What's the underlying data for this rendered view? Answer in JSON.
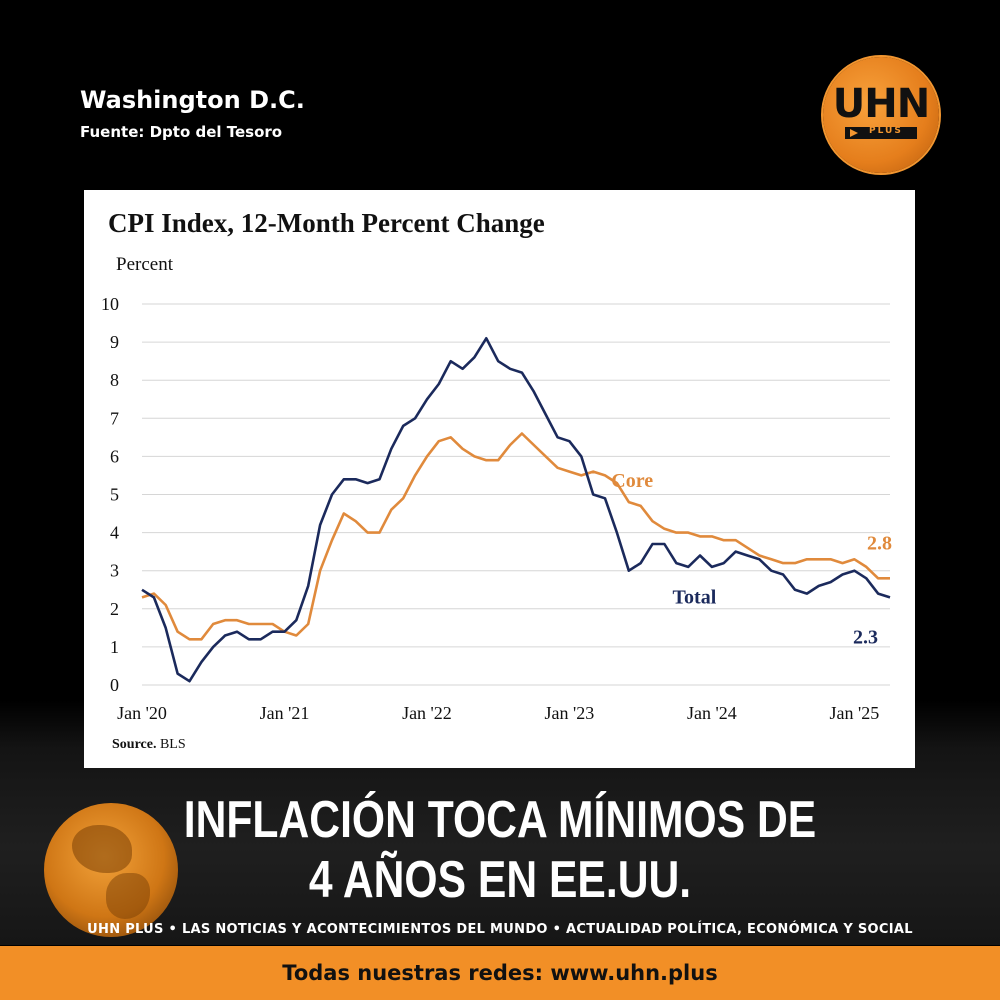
{
  "header": {
    "location": "Washington D.C.",
    "source": "Fuente: Dpto del Tesoro"
  },
  "logo": {
    "main": "UHN",
    "sub": "PLUS",
    "color": "#f29630"
  },
  "headline": {
    "line1": "INFLACIÓN TOCA MÍNIMOS DE",
    "line2": "4 AÑOS EN EE.UU."
  },
  "ticker": "UHN PLUS • LAS NOTICIAS Y ACONTECIMIENTOS DEL MUNDO • ACTUALIDAD POLÍTICA, ECONÓMICA Y SOCIAL",
  "footer": {
    "text": "Todas nuestras redes: www.uhn.plus",
    "color": "#f28f26"
  },
  "chart_data": {
    "type": "line",
    "title": "CPI Index, 12-Month Percent Change",
    "ylabel": "Percent",
    "xlabel": "",
    "ylim": [
      0,
      10
    ],
    "yticks": [
      "0",
      "1",
      "2",
      "3",
      "4",
      "5",
      "6",
      "7",
      "8",
      "9",
      "10"
    ],
    "xticks": [
      "Jan '20",
      "Jan '21",
      "Jan '22",
      "Jan '23",
      "Jan '24",
      "Jan '25"
    ],
    "x_start": "Jan 2020",
    "x_end": "Apr 2025",
    "grid": true,
    "source_label": "Source.",
    "source_value": "BLS",
    "series": [
      {
        "name": "Total",
        "color": "#1b2a5c",
        "end_label": "2.3",
        "values": [
          2.5,
          2.3,
          1.5,
          0.3,
          0.1,
          0.6,
          1.0,
          1.3,
          1.4,
          1.2,
          1.2,
          1.4,
          1.4,
          1.7,
          2.6,
          4.2,
          5.0,
          5.4,
          5.4,
          5.3,
          5.4,
          6.2,
          6.8,
          7.0,
          7.5,
          7.9,
          8.5,
          8.3,
          8.6,
          9.1,
          8.5,
          8.3,
          8.2,
          7.7,
          7.1,
          6.5,
          6.4,
          6.0,
          5.0,
          4.9,
          4.0,
          3.0,
          3.2,
          3.7,
          3.7,
          3.2,
          3.1,
          3.4,
          3.1,
          3.2,
          3.5,
          3.4,
          3.3,
          3.0,
          2.9,
          2.5,
          2.4,
          2.6,
          2.7,
          2.9,
          3.0,
          2.8,
          2.4,
          2.3
        ]
      },
      {
        "name": "Core",
        "color": "#e08a3c",
        "end_label": "2.8",
        "values": [
          2.3,
          2.4,
          2.1,
          1.4,
          1.2,
          1.2,
          1.6,
          1.7,
          1.7,
          1.6,
          1.6,
          1.6,
          1.4,
          1.3,
          1.6,
          3.0,
          3.8,
          4.5,
          4.3,
          4.0,
          4.0,
          4.6,
          4.9,
          5.5,
          6.0,
          6.4,
          6.5,
          6.2,
          6.0,
          5.9,
          5.9,
          6.3,
          6.6,
          6.3,
          6.0,
          5.7,
          5.6,
          5.5,
          5.6,
          5.5,
          5.3,
          4.8,
          4.7,
          4.3,
          4.1,
          4.0,
          4.0,
          3.9,
          3.9,
          3.8,
          3.8,
          3.6,
          3.4,
          3.3,
          3.2,
          3.2,
          3.3,
          3.3,
          3.3,
          3.2,
          3.3,
          3.1,
          2.8,
          2.8
        ]
      }
    ]
  }
}
